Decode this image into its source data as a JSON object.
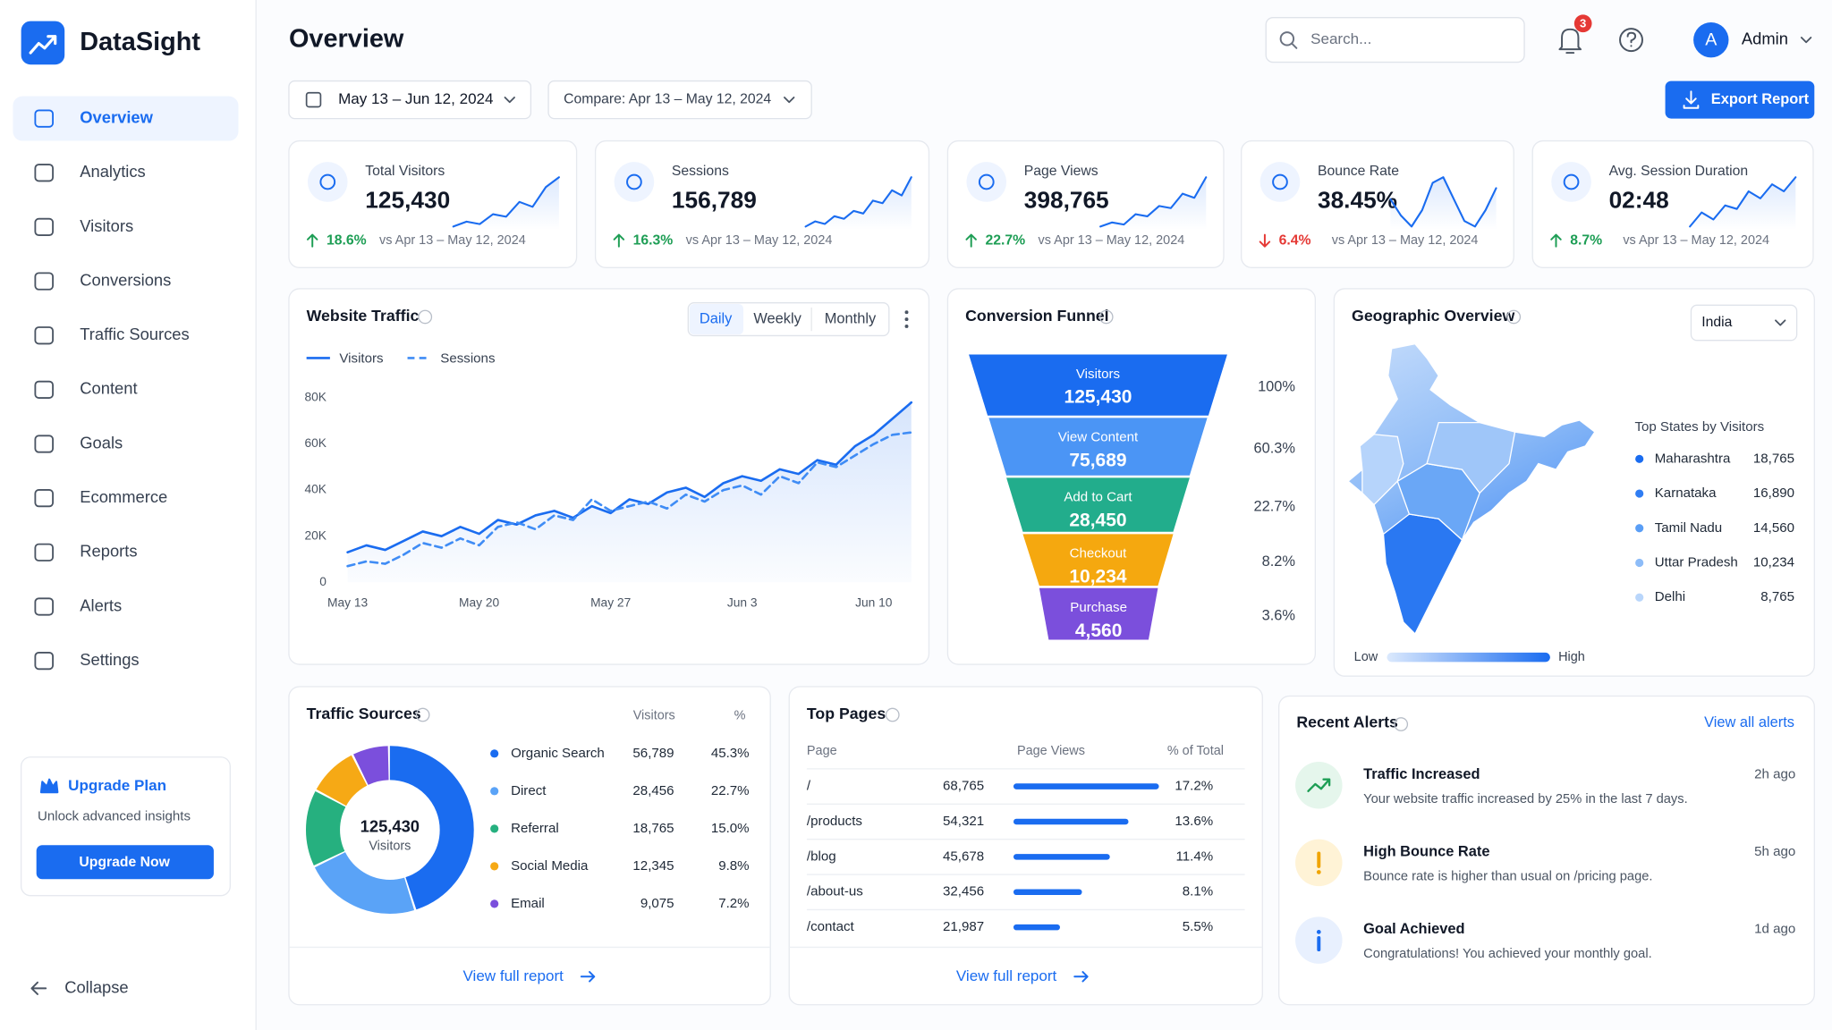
{
  "sidebar": {
    "brand": "DataSight",
    "nav": [
      "Overview",
      "Analytics",
      "Visitors",
      "Conversions",
      "Traffic Sources",
      "Content",
      "Goals",
      "Ecommerce",
      "Reports",
      "Alerts",
      "Settings"
    ],
    "upgrade": {
      "title": "Upgrade Plan",
      "text": "Unlock advanced insights",
      "button": "Upgrade Now"
    },
    "collapse": "Collapse"
  },
  "header": {
    "title": "Overview",
    "search": "Search...",
    "notifications": 3,
    "user_initial": "A",
    "user": "Admin",
    "date_range": "May 13 – Jun 12, 2024",
    "compare": "Compare: Apr 13 – May 12, 2024",
    "export": "Export Report"
  },
  "kpis": [
    {
      "label": "Total Visitors",
      "value": "125,430",
      "change": "18.6%",
      "direction": "up",
      "compare": "vs Apr 13 – May 12, 2024",
      "trend": [
        20,
        22,
        21,
        25,
        24,
        30,
        28,
        36,
        40
      ]
    },
    {
      "label": "Sessions",
      "value": "156,789",
      "change": "16.3%",
      "direction": "up",
      "compare": "vs Apr 13 – May 12, 2024",
      "trend": [
        10,
        14,
        12,
        18,
        16,
        22,
        20,
        30,
        28,
        38,
        34,
        48
      ]
    },
    {
      "label": "Page Views",
      "value": "398,765",
      "change": "22.7%",
      "direction": "up",
      "compare": "vs Apr 13 – May 12, 2024",
      "trend": [
        10,
        12,
        11,
        16,
        15,
        20,
        19,
        26,
        24,
        34
      ]
    },
    {
      "label": "Bounce Rate",
      "value": "38.45%",
      "change": "6.4%",
      "direction": "down",
      "compare": "vs Apr 13 – May 12, 2024",
      "trend": [
        24,
        18,
        14,
        20,
        30,
        32,
        24,
        16,
        14,
        20,
        28
      ]
    },
    {
      "label": "Avg. Session Duration",
      "value": "02:48",
      "change": "8.7%",
      "direction": "up",
      "compare": "vs Apr 13 – May 12, 2024",
      "trend": [
        14,
        18,
        16,
        20,
        19,
        24,
        22,
        26,
        24,
        28
      ]
    }
  ],
  "traffic_chart": {
    "type": "line",
    "title": "Website Traffic",
    "tabs": [
      "Daily",
      "Weekly",
      "Monthly"
    ],
    "categories": [
      "May 13",
      null,
      null,
      null,
      null,
      null,
      null,
      "May 20",
      null,
      null,
      null,
      null,
      null,
      null,
      "May 27",
      null,
      null,
      null,
      null,
      null,
      null,
      "Jun 3",
      null,
      null,
      null,
      null,
      null,
      null,
      "Jun 10",
      null,
      null
    ],
    "series": [
      {
        "name": "Visitors",
        "color": "#1a6cf0",
        "dashed": false,
        "values": [
          13000,
          16000,
          14000,
          18000,
          22000,
          20000,
          24000,
          21000,
          27000,
          25000,
          29000,
          31000,
          28000,
          33000,
          30000,
          36000,
          34000,
          39000,
          41000,
          37000,
          43000,
          46000,
          44000,
          49000,
          47000,
          53000,
          51000,
          59000,
          64000,
          71000,
          78000
        ]
      },
      {
        "name": "Sessions",
        "color": "#3f8cf5",
        "dashed": true,
        "values": [
          7000,
          9000,
          8000,
          12000,
          17000,
          15000,
          19000,
          16000,
          24000,
          26000,
          23000,
          29000,
          27000,
          36000,
          31000,
          33000,
          35000,
          32000,
          38000,
          35000,
          40000,
          42000,
          38000,
          46000,
          43000,
          52000,
          50000,
          55000,
          60000,
          64000,
          65000
        ]
      }
    ],
    "ylim": [
      0,
      80000
    ],
    "yticks": [
      0,
      {
        "value": 20000,
        "label": "20K"
      },
      {
        "value": 40000,
        "label": "40K"
      },
      {
        "value": 60000,
        "label": "60K"
      },
      {
        "value": 80000,
        "label": "80K"
      }
    ],
    "grid": false
  },
  "funnel": {
    "title": "Conversion Funnel",
    "stages": [
      {
        "name": "Visitors",
        "value": "125,430",
        "percent": "100%",
        "color": "#1a6cf0"
      },
      {
        "name": "View Content",
        "value": "75,689",
        "percent": "60.3%",
        "color": "#4b95f5"
      },
      {
        "name": "Add to Cart",
        "value": "28,450",
        "percent": "22.7%",
        "color": "#22ad8c"
      },
      {
        "name": "Checkout",
        "value": "10,234",
        "percent": "8.2%",
        "color": "#f5a80f"
      },
      {
        "name": "Purchase",
        "value": "4,560",
        "percent": "3.6%",
        "color": "#7b4fdc"
      }
    ]
  },
  "geo": {
    "title": "Geographic Overview",
    "country": "India",
    "list_title": "Top States by Visitors",
    "states": [
      {
        "name": "Maharashtra",
        "value": "18,765",
        "color": "#1a6cf0"
      },
      {
        "name": "Karnataka",
        "value": "16,890",
        "color": "#2f7df3"
      },
      {
        "name": "Tamil Nadu",
        "value": "14,560",
        "color": "#5a9ef6"
      },
      {
        "name": "Uttar Pradesh",
        "value": "10,234",
        "color": "#8dbcf8"
      },
      {
        "name": "Delhi",
        "value": "8,765",
        "color": "#b9d6fb"
      }
    ],
    "low": "Low",
    "high": "High"
  },
  "traffic_sources": {
    "title": "Traffic Sources",
    "total": "125,430",
    "total_label": "Visitors",
    "columns": [
      "Visitors",
      "%"
    ],
    "rows": [
      {
        "name": "Organic Search",
        "visitors": "56,789",
        "percent": 45.3,
        "percent_label": "45.3%",
        "color": "#1a6cf0"
      },
      {
        "name": "Direct",
        "visitors": "28,456",
        "percent": 22.7,
        "percent_label": "22.7%",
        "color": "#5aa3f7"
      },
      {
        "name": "Referral",
        "visitors": "18,765",
        "percent": 15.0,
        "percent_label": "15.0%",
        "color": "#26b07f"
      },
      {
        "name": "Social Media",
        "visitors": "12,345",
        "percent": 9.8,
        "percent_label": "9.8%",
        "color": "#f6a915"
      },
      {
        "name": "Email",
        "visitors": "9,075",
        "percent": 7.2,
        "percent_label": "7.2%",
        "color": "#7b4fdc"
      }
    ],
    "link": "View full report"
  },
  "top_pages": {
    "title": "Top Pages",
    "columns": [
      "Page",
      "Page Views",
      "% of Total"
    ],
    "rows": [
      {
        "page": "/",
        "views": "68,765",
        "percent": 17.2,
        "percent_label": "17.2%"
      },
      {
        "page": "/products",
        "views": "54,321",
        "percent": 13.6,
        "percent_label": "13.6%"
      },
      {
        "page": "/blog",
        "views": "45,678",
        "percent": 11.4,
        "percent_label": "11.4%"
      },
      {
        "page": "/about-us",
        "views": "32,456",
        "percent": 8.1,
        "percent_label": "8.1%"
      },
      {
        "page": "/contact",
        "views": "21,987",
        "percent": 5.5,
        "percent_label": "5.5%"
      }
    ],
    "bar_color": "#1a6cf0",
    "link": "View full report"
  },
  "alerts": {
    "title": "Recent Alerts",
    "link": "View all alerts",
    "items": [
      {
        "title": "Traffic Increased",
        "text": "Your website traffic increased by 25% in the last 7 days.",
        "time": "2h ago"
      },
      {
        "title": "High Bounce Rate",
        "text": "Bounce rate is higher than usual on /pricing page.",
        "time": "5h ago"
      },
      {
        "title": "Goal Achieved",
        "text": "Congratulations! You achieved your monthly goal.",
        "time": "1d ago"
      }
    ]
  }
}
